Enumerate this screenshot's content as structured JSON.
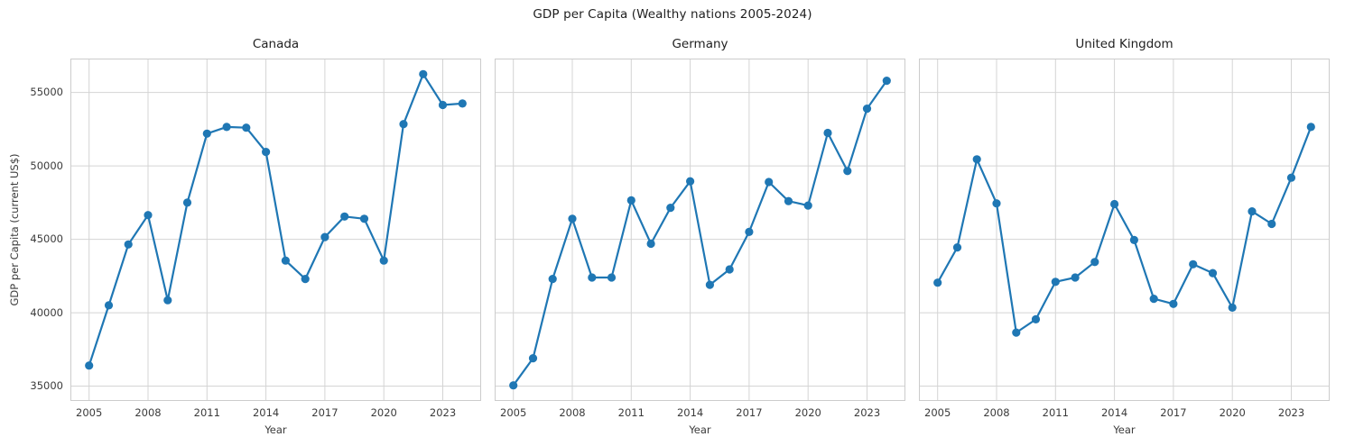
{
  "figure": {
    "title": "GDP per Capita (Wealthy nations 2005-2024)",
    "ylabel": "GDP per Capita (current US$)"
  },
  "colors": {
    "line": "#1f77b4",
    "grid": "#d4d4d4",
    "spine": "#cccccc",
    "background": "#ffffff",
    "text": "#3b3b3b"
  },
  "chart_data": [
    {
      "type": "line",
      "title": "Canada",
      "series_name": "Canada GDP per capita",
      "xlabel": "Year",
      "ylabel": "GDP per Capita (current US$)",
      "grid": true,
      "legend": "none",
      "marker": "circle",
      "xlim": [
        2004.05,
        2024.95
      ],
      "ylim": [
        33990,
        57310
      ],
      "xticks": [
        2005,
        2008,
        2011,
        2014,
        2017,
        2020,
        2023
      ],
      "yticks": [
        35000,
        40000,
        45000,
        50000,
        55000
      ],
      "x": [
        2005,
        2006,
        2007,
        2008,
        2009,
        2010,
        2011,
        2012,
        2013,
        2014,
        2015,
        2016,
        2017,
        2018,
        2019,
        2020,
        2021,
        2022,
        2023,
        2024
      ],
      "y": [
        36400,
        40500,
        44650,
        46650,
        40850,
        47500,
        52200,
        52650,
        52600,
        50950,
        43550,
        42300,
        45150,
        46550,
        46400,
        43550,
        52850,
        56250,
        54150,
        54250
      ]
    },
    {
      "type": "line",
      "title": "Germany",
      "series_name": "Germany GDP per capita",
      "xlabel": "Year",
      "ylabel": "GDP per Capita (current US$)",
      "grid": true,
      "legend": "none",
      "marker": "circle",
      "xlim": [
        2004.05,
        2024.95
      ],
      "ylim": [
        33990,
        57310
      ],
      "xticks": [
        2005,
        2008,
        2011,
        2014,
        2017,
        2020,
        2023
      ],
      "yticks": [
        35000,
        40000,
        45000,
        50000,
        55000
      ],
      "x": [
        2005,
        2006,
        2007,
        2008,
        2009,
        2010,
        2011,
        2012,
        2013,
        2014,
        2015,
        2016,
        2017,
        2018,
        2019,
        2020,
        2021,
        2022,
        2023,
        2024
      ],
      "y": [
        35050,
        36900,
        42300,
        46400,
        42400,
        42400,
        47650,
        44700,
        47150,
        48950,
        41900,
        42950,
        45500,
        48900,
        47600,
        47300,
        52250,
        49650,
        53900,
        55800
      ]
    },
    {
      "type": "line",
      "title": "United Kingdom",
      "series_name": "United Kingdom GDP per capita",
      "xlabel": "Year",
      "ylabel": "GDP per Capita (current US$)",
      "grid": true,
      "legend": "none",
      "marker": "circle",
      "xlim": [
        2004.05,
        2024.95
      ],
      "ylim": [
        33990,
        57310
      ],
      "xticks": [
        2005,
        2008,
        2011,
        2014,
        2017,
        2020,
        2023
      ],
      "yticks": [
        35000,
        40000,
        45000,
        50000,
        55000
      ],
      "x": [
        2005,
        2006,
        2007,
        2008,
        2009,
        2010,
        2011,
        2012,
        2013,
        2014,
        2015,
        2016,
        2017,
        2018,
        2019,
        2020,
        2021,
        2022,
        2023,
        2024
      ],
      "y": [
        42050,
        44450,
        50450,
        47450,
        38650,
        39550,
        42100,
        42400,
        43450,
        47400,
        44950,
        40950,
        40600,
        43300,
        42700,
        40350,
        46900,
        46050,
        49200,
        52650
      ]
    }
  ]
}
